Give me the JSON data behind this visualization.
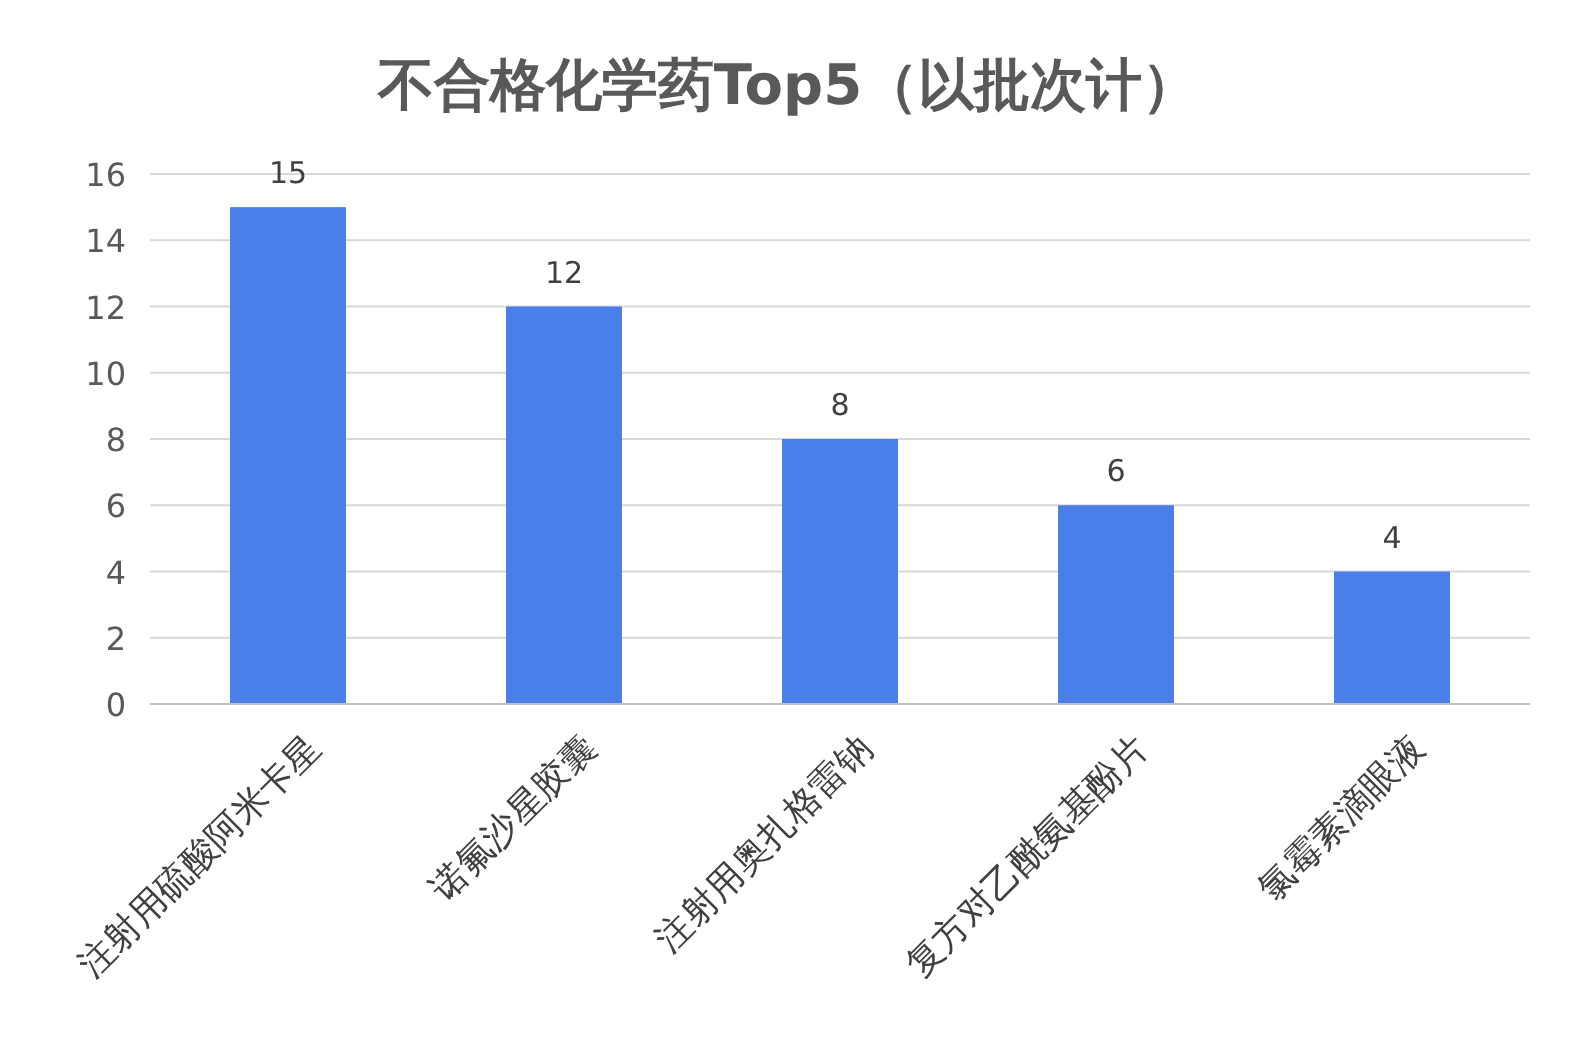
{
  "chart_data": {
    "type": "bar",
    "title": "不合格化学药Top5（以批次计）",
    "categories": [
      "注射用硫酸阿米卡星",
      "诺氟沙星胶囊",
      "注射用奥扎格雷钠",
      "复方对乙酰氨基酚片",
      "氯霉素滴眼液"
    ],
    "values": [
      15,
      12,
      8,
      6,
      4
    ],
    "color": "#4a7ee8",
    "ylim": [
      0,
      16
    ],
    "yticks": [
      0,
      2,
      4,
      6,
      8,
      10,
      12,
      14,
      16
    ],
    "grid": "y",
    "data_labels": true
  }
}
